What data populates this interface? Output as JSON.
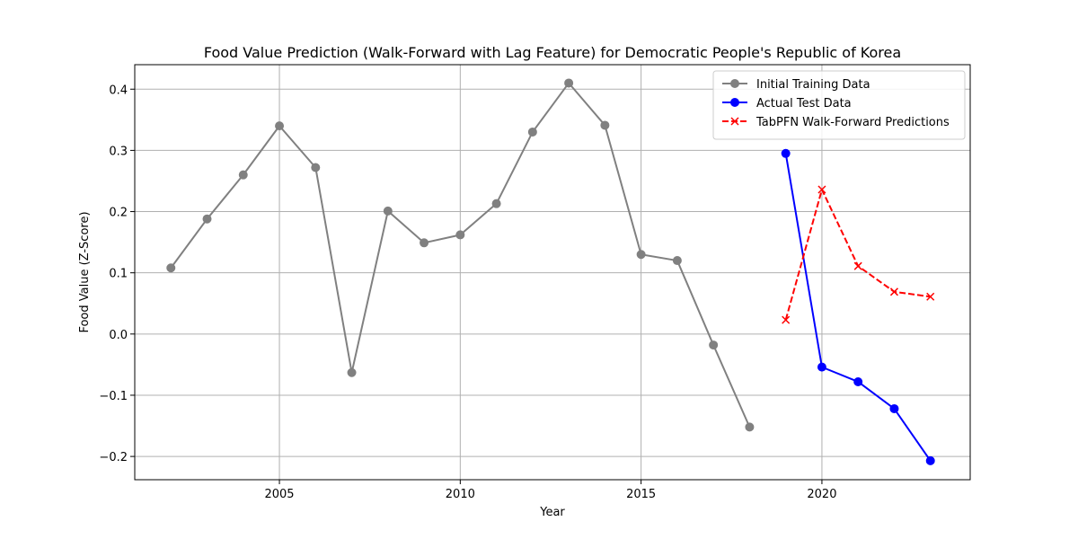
{
  "chart_data": {
    "type": "line",
    "title": "Food Value Prediction (Walk-Forward with Lag Feature) for Democratic People's Republic of Korea",
    "xlabel": "Year",
    "ylabel": "Food Value (Z-Score)",
    "xlim": [
      2001,
      2024.1
    ],
    "ylim": [
      -0.238,
      0.44
    ],
    "xticks": [
      2005,
      2010,
      2015,
      2020
    ],
    "yticks": [
      -0.2,
      -0.1,
      0.0,
      0.1,
      0.2,
      0.3,
      0.4
    ],
    "ytick_labels": [
      "−0.2",
      "−0.1",
      "0.0",
      "0.1",
      "0.2",
      "0.3",
      "0.4"
    ],
    "grid": true,
    "legend_position": "top-right",
    "series": [
      {
        "name": "Initial Training Data",
        "color": "#808080",
        "line_style": "solid",
        "marker": "circle",
        "x": [
          2002,
          2003,
          2004,
          2005,
          2006,
          2007,
          2008,
          2009,
          2010,
          2011,
          2012,
          2013,
          2014,
          2015,
          2016,
          2017,
          2018
        ],
        "y": [
          0.108,
          0.188,
          0.26,
          0.34,
          0.272,
          -0.063,
          0.201,
          0.149,
          0.162,
          0.213,
          0.33,
          0.41,
          0.341,
          0.13,
          0.12,
          -0.018,
          -0.152
        ]
      },
      {
        "name": "Actual Test Data",
        "color": "#0000ff",
        "line_style": "solid",
        "marker": "circle",
        "x": [
          2019,
          2020,
          2021,
          2022,
          2023
        ],
        "y": [
          0.295,
          -0.054,
          -0.078,
          -0.122,
          -0.207
        ]
      },
      {
        "name": "TabPFN Walk-Forward Predictions",
        "color": "#ff0000",
        "line_style": "dashed",
        "marker": "x",
        "x": [
          2019,
          2020,
          2021,
          2022,
          2023
        ],
        "y": [
          0.023,
          0.236,
          0.111,
          0.069,
          0.061
        ]
      }
    ]
  }
}
